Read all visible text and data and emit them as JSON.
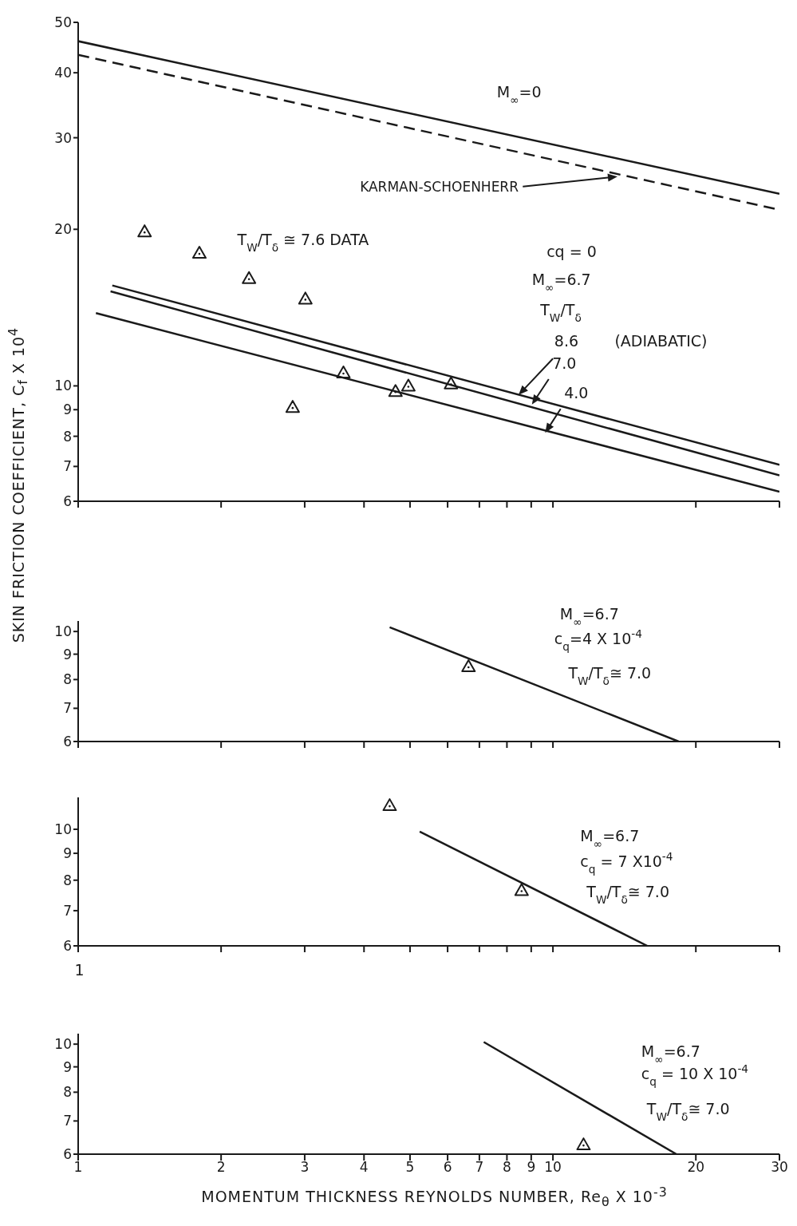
{
  "chart_data": [
    {
      "type": "line",
      "log": "xy",
      "grid": false,
      "legend": false,
      "tick_labels": "y",
      "ylabel": "SKIN FRICTION COEFFICIENT, C$_{f}$ X 10$^{4}$",
      "xlim": [
        1,
        30
      ],
      "xticks": [
        {
          "value": 1,
          "label": null
        },
        {
          "value": 2,
          "label": null
        },
        {
          "value": 3,
          "label": null
        },
        {
          "value": 4,
          "label": null
        },
        {
          "value": 5,
          "label": null
        },
        {
          "value": 6,
          "label": null
        },
        {
          "value": 7,
          "label": null
        },
        {
          "value": 8,
          "label": null
        },
        {
          "value": 9,
          "label": null
        },
        {
          "value": 10,
          "label": null
        },
        {
          "value": 20,
          "label": null
        },
        {
          "value": 30,
          "label": null
        }
      ],
      "ylim": [
        6,
        50
      ],
      "yticks": [
        6,
        7,
        8,
        9,
        10,
        20,
        30,
        40,
        50
      ],
      "series": [
        {
          "type": "line",
          "color": "#1a1a1a",
          "line_style": "solid",
          "x": [
            1,
            30
          ],
          "values": [
            46,
            23.4
          ]
        },
        {
          "type": "line",
          "color": "#1a1a1a",
          "line_style": "dashed",
          "x": [
            1,
            30
          ],
          "values": [
            43.3,
            21.8
          ]
        },
        {
          "type": "line",
          "color": "#1a1a1a",
          "line_style": "solid",
          "x": [
            1.18,
            30
          ],
          "values": [
            15.6,
            7.05
          ]
        },
        {
          "type": "line",
          "color": "#1a1a1a",
          "line_style": "solid",
          "x": [
            1.17,
            30
          ],
          "values": [
            15.2,
            6.73
          ]
        },
        {
          "type": "line",
          "color": "#1a1a1a",
          "line_style": "solid",
          "x": [
            1.09,
            30
          ],
          "values": [
            13.8,
            6.26
          ]
        },
        {
          "type": "scatter",
          "color": "#1a1a1a",
          "marker": "triangle",
          "x": [
            1.38,
            1.8,
            2.29,
            3.01,
            2.83,
            3.62,
            4.66,
            4.96,
            6.1
          ],
          "values": [
            19.8,
            18,
            16.1,
            14.7,
            9.1,
            10.6,
            9.76,
            10,
            10.1
          ]
        }
      ],
      "annotations": [
        "M$_{∞}$=0",
        "T$_{W}$/T$_{δ}$ ≅ 7.6 DATA",
        "cq = 0",
        "M$_{∞}$=6.7",
        "T$_{W}$/T$_{δ}$",
        "(ADIABATIC)",
        "KARMAN-SCHOENHERR",
        "8.6",
        "7.0",
        "4.0"
      ]
    },
    {
      "type": "line",
      "log": "xy",
      "grid": false,
      "legend": false,
      "tick_labels": "y",
      "xlim": [
        1,
        30
      ],
      "xticks": [
        {
          "value": 1,
          "label": null
        },
        {
          "value": 2,
          "label": null
        },
        {
          "value": 3,
          "label": null
        },
        {
          "value": 4,
          "label": null
        },
        {
          "value": 5,
          "label": null
        },
        {
          "value": 6,
          "label": null
        },
        {
          "value": 7,
          "label": null
        },
        {
          "value": 8,
          "label": null
        },
        {
          "value": 9,
          "label": null
        },
        {
          "value": 10,
          "label": null
        },
        {
          "value": 20,
          "label": null
        },
        {
          "value": 30,
          "label": null
        }
      ],
      "ylim": [
        6,
        10.5
      ],
      "yticks": [
        6,
        7,
        8,
        9,
        10
      ],
      "series": [
        {
          "type": "line",
          "color": "#1a1a1a",
          "line_style": "solid",
          "x": [
            4.53,
            18.4
          ],
          "values": [
            10.2,
            6
          ]
        },
        {
          "type": "scatter",
          "color": "#1a1a1a",
          "marker": "triangle",
          "x": [
            6.64
          ],
          "values": [
            8.5
          ]
        }
      ],
      "annotations": [
        "M$_{∞}$=6.7",
        "c$_{q}$=4 X 10$^{-4}$",
        "T$_{W}$/T$_{δ}$≅ 7.0"
      ]
    },
    {
      "type": "line",
      "log": "xy",
      "grid": false,
      "legend": false,
      "tick_labels": "y",
      "xlim": [
        1,
        30
      ],
      "xticks": [
        {
          "value": 1,
          "label": null
        },
        {
          "value": 2,
          "label": null
        },
        {
          "value": 3,
          "label": null
        },
        {
          "value": 4,
          "label": null
        },
        {
          "value": 5,
          "label": null
        },
        {
          "value": 6,
          "label": null
        },
        {
          "value": 7,
          "label": null
        },
        {
          "value": 8,
          "label": null
        },
        {
          "value": 9,
          "label": null
        },
        {
          "value": 10,
          "label": null
        },
        {
          "value": 20,
          "label": null
        },
        {
          "value": 30,
          "label": null
        }
      ],
      "ylim": [
        6,
        11.5
      ],
      "yticks": [
        6,
        7,
        8,
        9,
        10
      ],
      "series": [
        {
          "type": "line",
          "color": "#1a1a1a",
          "line_style": "solid",
          "x": [
            5.24,
            15.8
          ],
          "values": [
            9.9,
            6
          ]
        },
        {
          "type": "scatter",
          "color": "#1a1a1a",
          "marker": "triangle",
          "x": [
            4.53,
            8.59
          ],
          "values": [
            11.1,
            7.65
          ]
        }
      ],
      "annotations": [
        "M$_{∞}$=6.7",
        "c$_{q}$ = 7 X10$^{-4}$",
        "T$_{W}$/T$_{δ}$≅ 7.0",
        "1"
      ]
    },
    {
      "type": "line",
      "log": "xy",
      "grid": false,
      "legend": false,
      "xlabel": "MOMENTUM THICKNESS REYNOLDS NUMBER, Re$_{θ}$ X 10$^{-3}$",
      "xlim": [
        1,
        30
      ],
      "xticks": [
        1,
        2,
        3,
        4,
        5,
        6,
        7,
        8,
        9,
        10,
        20,
        30
      ],
      "ylim": [
        6,
        10.5
      ],
      "yticks": [
        6,
        7,
        8,
        9,
        10
      ],
      "series": [
        {
          "type": "line",
          "color": "#1a1a1a",
          "line_style": "solid",
          "x": [
            7.15,
            18.2
          ],
          "values": [
            10.1,
            6
          ]
        },
        {
          "type": "scatter",
          "color": "#1a1a1a",
          "marker": "triangle",
          "x": [
            11.6
          ],
          "values": [
            6.27
          ]
        }
      ],
      "annotations": [
        "M$_{∞}$=6.7",
        "c$_{q}$ = 10 X 10$^{-4}$",
        "T$_{W}$/T$_{δ}$≅ 7.0"
      ]
    }
  ]
}
